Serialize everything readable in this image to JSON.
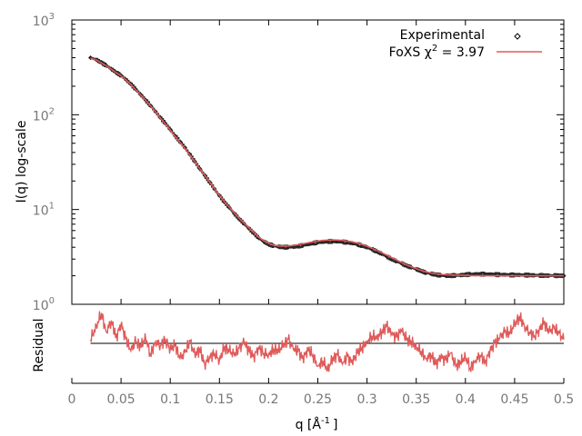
{
  "chart_data": {
    "type": "line",
    "ylabel_main": "I(q) log-scale",
    "ylabel_residual": "Residual",
    "xlabel": "q [Å",
    "xlabel_sup": "-1",
    "xlabel_end": "]",
    "xlim": [
      0,
      0.5
    ],
    "ylim": [
      1,
      1000
    ],
    "y_scale": "log",
    "x_ticks": [
      0,
      0.05,
      0.1,
      0.15,
      0.2,
      0.25,
      0.3,
      0.35,
      0.4,
      0.45,
      0.5
    ],
    "x_tick_labels": [
      "0",
      "0.05",
      "0.1",
      "0.15",
      "0.2",
      "0.25",
      "0.3",
      "0.35",
      "0.4",
      "0.45",
      "0.5"
    ],
    "y_ticks": [
      {
        "base": "10",
        "exp": "0",
        "value": 1
      },
      {
        "base": "10",
        "exp": "1",
        "value": 10
      },
      {
        "base": "10",
        "exp": "2",
        "value": 100
      },
      {
        "base": "10",
        "exp": "3",
        "value": 1000
      }
    ],
    "legend": {
      "placement": "top-right",
      "experimental_label": "Experimental",
      "fit_label_prefix": "FoXS χ",
      "fit_label_sup": "2",
      "fit_label_suffix": " = 3.97"
    },
    "series": [
      {
        "name": "Experimental",
        "color": "#000000",
        "x": [
          0.019,
          0.025,
          0.03,
          0.035,
          0.04,
          0.045,
          0.05,
          0.055,
          0.06,
          0.065,
          0.07,
          0.075,
          0.08,
          0.085,
          0.09,
          0.095,
          0.1,
          0.105,
          0.11,
          0.115,
          0.12,
          0.125,
          0.13,
          0.135,
          0.14,
          0.145,
          0.15,
          0.155,
          0.16,
          0.165,
          0.17,
          0.175,
          0.18,
          0.185,
          0.19,
          0.195,
          0.2,
          0.205,
          0.21,
          0.215,
          0.22,
          0.225,
          0.23,
          0.235,
          0.24,
          0.245,
          0.25,
          0.255,
          0.26,
          0.265,
          0.27,
          0.275,
          0.28,
          0.285,
          0.29,
          0.295,
          0.3,
          0.305,
          0.31,
          0.315,
          0.32,
          0.325,
          0.33,
          0.335,
          0.34,
          0.345,
          0.35,
          0.355,
          0.36,
          0.365,
          0.37,
          0.375,
          0.38,
          0.385,
          0.39,
          0.395,
          0.4,
          0.405,
          0.41,
          0.415,
          0.42,
          0.425,
          0.43,
          0.435,
          0.44,
          0.445,
          0.45,
          0.455,
          0.46,
          0.465,
          0.47,
          0.475,
          0.48,
          0.485,
          0.49,
          0.495,
          0.5
        ],
        "y": [
          400,
          380,
          355,
          330,
          305,
          280,
          260,
          235,
          210,
          185,
          163,
          143,
          125,
          108,
          93,
          81,
          70,
          60,
          52,
          45,
          38,
          32,
          27,
          23,
          19.5,
          16.5,
          14,
          12,
          10.5,
          9.1,
          8.0,
          7.1,
          6.3,
          5.6,
          5.0,
          4.6,
          4.3,
          4.15,
          4.05,
          4.0,
          4.0,
          4.05,
          4.1,
          4.2,
          4.3,
          4.4,
          4.5,
          4.55,
          4.6,
          4.62,
          4.6,
          4.55,
          4.5,
          4.4,
          4.3,
          4.15,
          4.0,
          3.8,
          3.6,
          3.4,
          3.2,
          3.0,
          2.85,
          2.7,
          2.55,
          2.45,
          2.35,
          2.25,
          2.15,
          2.1,
          2.05,
          2.02,
          2.0,
          2.0,
          2.02,
          2.03,
          2.05,
          2.07,
          2.08,
          2.08,
          2.08,
          2.07,
          2.06,
          2.05,
          2.05,
          2.04,
          2.04,
          2.04,
          2.03,
          2.03,
          2.02,
          2.02,
          2.01,
          2.01,
          2.01,
          2.0,
          2.0
        ]
      },
      {
        "name": "FoXS χ2 = 3.97",
        "color": "#e05a5a",
        "x": [
          0.019,
          0.025,
          0.03,
          0.035,
          0.04,
          0.045,
          0.05,
          0.055,
          0.06,
          0.065,
          0.07,
          0.075,
          0.08,
          0.085,
          0.09,
          0.095,
          0.1,
          0.105,
          0.11,
          0.115,
          0.12,
          0.125,
          0.13,
          0.135,
          0.14,
          0.145,
          0.15,
          0.155,
          0.16,
          0.165,
          0.17,
          0.175,
          0.18,
          0.185,
          0.19,
          0.195,
          0.2,
          0.205,
          0.21,
          0.215,
          0.22,
          0.225,
          0.23,
          0.235,
          0.24,
          0.245,
          0.25,
          0.255,
          0.26,
          0.265,
          0.27,
          0.275,
          0.28,
          0.285,
          0.29,
          0.295,
          0.3,
          0.305,
          0.31,
          0.315,
          0.32,
          0.325,
          0.33,
          0.335,
          0.34,
          0.345,
          0.35,
          0.355,
          0.36,
          0.365,
          0.37,
          0.375,
          0.38,
          0.385,
          0.39,
          0.395,
          0.4,
          0.405,
          0.41,
          0.415,
          0.42,
          0.425,
          0.43,
          0.435,
          0.44,
          0.445,
          0.45,
          0.455,
          0.46,
          0.465,
          0.47,
          0.475,
          0.48,
          0.485,
          0.49,
          0.495,
          0.5
        ],
        "y": [
          395,
          378,
          352,
          328,
          303,
          278,
          258,
          233,
          208,
          183,
          162,
          142,
          124,
          107,
          92,
          80,
          69,
          59,
          51,
          44,
          37.5,
          31.8,
          27,
          23,
          19.5,
          16.6,
          14.1,
          12.1,
          10.6,
          9.2,
          8.1,
          7.2,
          6.4,
          5.7,
          5.1,
          4.7,
          4.4,
          4.2,
          4.12,
          4.1,
          4.12,
          4.18,
          4.25,
          4.35,
          4.45,
          4.55,
          4.65,
          4.72,
          4.76,
          4.78,
          4.76,
          4.72,
          4.65,
          4.55,
          4.42,
          4.28,
          4.1,
          3.9,
          3.7,
          3.5,
          3.3,
          3.1,
          2.92,
          2.76,
          2.6,
          2.48,
          2.38,
          2.28,
          2.2,
          2.14,
          2.1,
          2.07,
          2.05,
          2.04,
          2.03,
          2.02,
          2.02,
          2.01,
          2.01,
          2.01,
          2.0,
          2.0,
          2.0,
          2.0,
          2.0,
          2.0,
          2.0,
          2.0,
          2.0,
          2.0,
          2.0,
          2.0,
          2.0,
          2.0,
          2.0,
          2.0,
          2.0
        ]
      },
      {
        "name": "Residual",
        "color": "#e05a5a",
        "x": [
          0.019,
          0.025,
          0.03,
          0.035,
          0.04,
          0.045,
          0.05,
          0.055,
          0.06,
          0.065,
          0.07,
          0.075,
          0.08,
          0.085,
          0.09,
          0.095,
          0.1,
          0.105,
          0.11,
          0.115,
          0.12,
          0.125,
          0.13,
          0.135,
          0.14,
          0.145,
          0.15,
          0.155,
          0.16,
          0.165,
          0.17,
          0.175,
          0.18,
          0.185,
          0.19,
          0.195,
          0.2,
          0.205,
          0.21,
          0.215,
          0.22,
          0.225,
          0.23,
          0.235,
          0.24,
          0.245,
          0.25,
          0.255,
          0.26,
          0.265,
          0.27,
          0.275,
          0.28,
          0.285,
          0.29,
          0.295,
          0.3,
          0.305,
          0.31,
          0.315,
          0.32,
          0.325,
          0.33,
          0.335,
          0.34,
          0.345,
          0.35,
          0.355,
          0.36,
          0.365,
          0.37,
          0.375,
          0.38,
          0.385,
          0.39,
          0.395,
          0.4,
          0.405,
          0.41,
          0.415,
          0.42,
          0.425,
          0.43,
          0.435,
          0.44,
          0.445,
          0.45,
          0.455,
          0.46,
          0.465,
          0.47,
          0.475,
          0.48,
          0.485,
          0.49,
          0.495,
          0.5
        ],
        "y": [
          0.2,
          0.9,
          1.6,
          0.6,
          1.2,
          0.3,
          1.0,
          0.2,
          -0.4,
          0.1,
          -0.2,
          0.3,
          -0.6,
          0.1,
          -0.1,
          0.2,
          -0.3,
          -0.1,
          -0.8,
          -0.5,
          0.1,
          -0.6,
          -0.3,
          -1.1,
          -0.7,
          -0.5,
          -0.9,
          -0.2,
          -0.4,
          -0.6,
          -0.3,
          0.1,
          -0.4,
          -0.7,
          -0.2,
          -0.5,
          -0.6,
          -0.3,
          -0.4,
          -0.1,
          0.2,
          -0.3,
          -0.4,
          -0.8,
          -0.3,
          -0.6,
          -1.2,
          -0.9,
          -1.4,
          -0.8,
          -0.6,
          -1.1,
          -0.7,
          -1.0,
          -0.5,
          -0.2,
          0.1,
          0.4,
          0.3,
          0.6,
          0.9,
          0.5,
          0.3,
          0.7,
          0.2,
          0.1,
          -0.2,
          -0.4,
          -0.8,
          -0.6,
          -1.1,
          -0.7,
          -0.9,
          -0.5,
          -1.2,
          -1.0,
          -0.7,
          -1.3,
          -0.9,
          -0.6,
          -1.0,
          -0.4,
          0.0,
          0.3,
          0.6,
          0.5,
          1.0,
          1.4,
          0.9,
          0.6,
          0.4,
          0.7,
          1.1,
          0.6,
          0.8,
          0.5,
          0.2
        ]
      }
    ]
  }
}
